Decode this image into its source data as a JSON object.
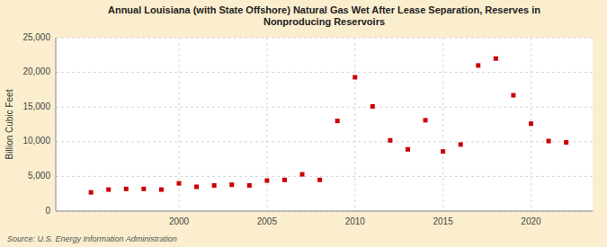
{
  "chart_data": {
    "type": "scatter",
    "title": "Annual Louisiana (with State Offshore) Natural Gas Wet After Lease Separation, Reserves in\nNonproducing Reservoirs",
    "ylabel": "Billion Cubic Feet",
    "source": "Source: U.S. Energy Information Administration",
    "x": [
      1995,
      1996,
      1997,
      1998,
      1999,
      2000,
      2001,
      2002,
      2003,
      2004,
      2005,
      2006,
      2007,
      2008,
      2009,
      2010,
      2011,
      2012,
      2013,
      2014,
      2015,
      2016,
      2017,
      2018,
      2019,
      2020,
      2021,
      2022
    ],
    "values": [
      2700,
      3100,
      3200,
      3200,
      3100,
      4000,
      3500,
      3700,
      3800,
      3700,
      4400,
      4500,
      5300,
      4500,
      13000,
      19300,
      15100,
      10200,
      8900,
      13100,
      8600,
      9600,
      21000,
      22000,
      16700,
      12600,
      10100,
      9900
    ],
    "color": "#cc0000",
    "marker": "square",
    "xlim": [
      1993,
      2023.5
    ],
    "xticks": [
      2000,
      2005,
      2010,
      2015,
      2020
    ],
    "ylim": [
      0,
      25000
    ],
    "yticks": [
      0,
      {
        "value": 5000,
        "label": "5,000"
      },
      {
        "value": 10000,
        "label": "10,000"
      },
      {
        "value": 15000,
        "label": "15,000"
      },
      {
        "value": 20000,
        "label": "20,000"
      },
      {
        "value": 25000,
        "label": "25,000"
      }
    ],
    "grid": true
  }
}
